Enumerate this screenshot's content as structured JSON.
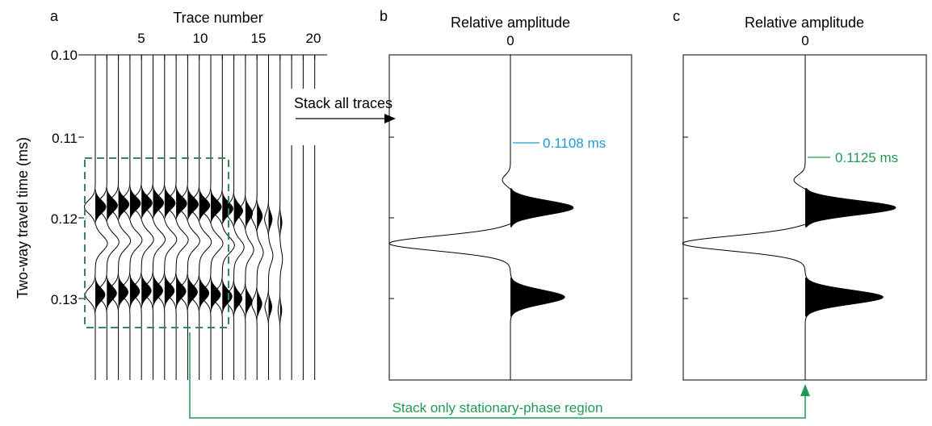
{
  "colors": {
    "blue": "#1a9ad6",
    "green": "#1e9a55",
    "black": "#000000",
    "box": "#2e8b57"
  },
  "panels": [
    {
      "letter": "a",
      "xlabel": "Trace number",
      "xticks": [
        "5",
        "10",
        "15",
        "20"
      ]
    },
    {
      "letter": "b",
      "xlabel": "Relative amplitude",
      "xticks": [
        "0"
      ],
      "annotation": "0.1108 ms"
    },
    {
      "letter": "c",
      "xlabel": "Relative amplitude",
      "xticks": [
        "0"
      ],
      "annotation": "0.1125 ms"
    }
  ],
  "y_axis": {
    "label": "Two-way travel time (ms)",
    "ticks": [
      "0.10",
      "0.11",
      "0.12",
      "0.13"
    ],
    "range": [
      0.1,
      0.14
    ]
  },
  "traces": {
    "count": 20,
    "stationary_region": [
      1,
      12
    ]
  },
  "arrows": {
    "stack_all": "Stack all traces",
    "stack_stationary": "Stack only stationary-phase region"
  }
}
